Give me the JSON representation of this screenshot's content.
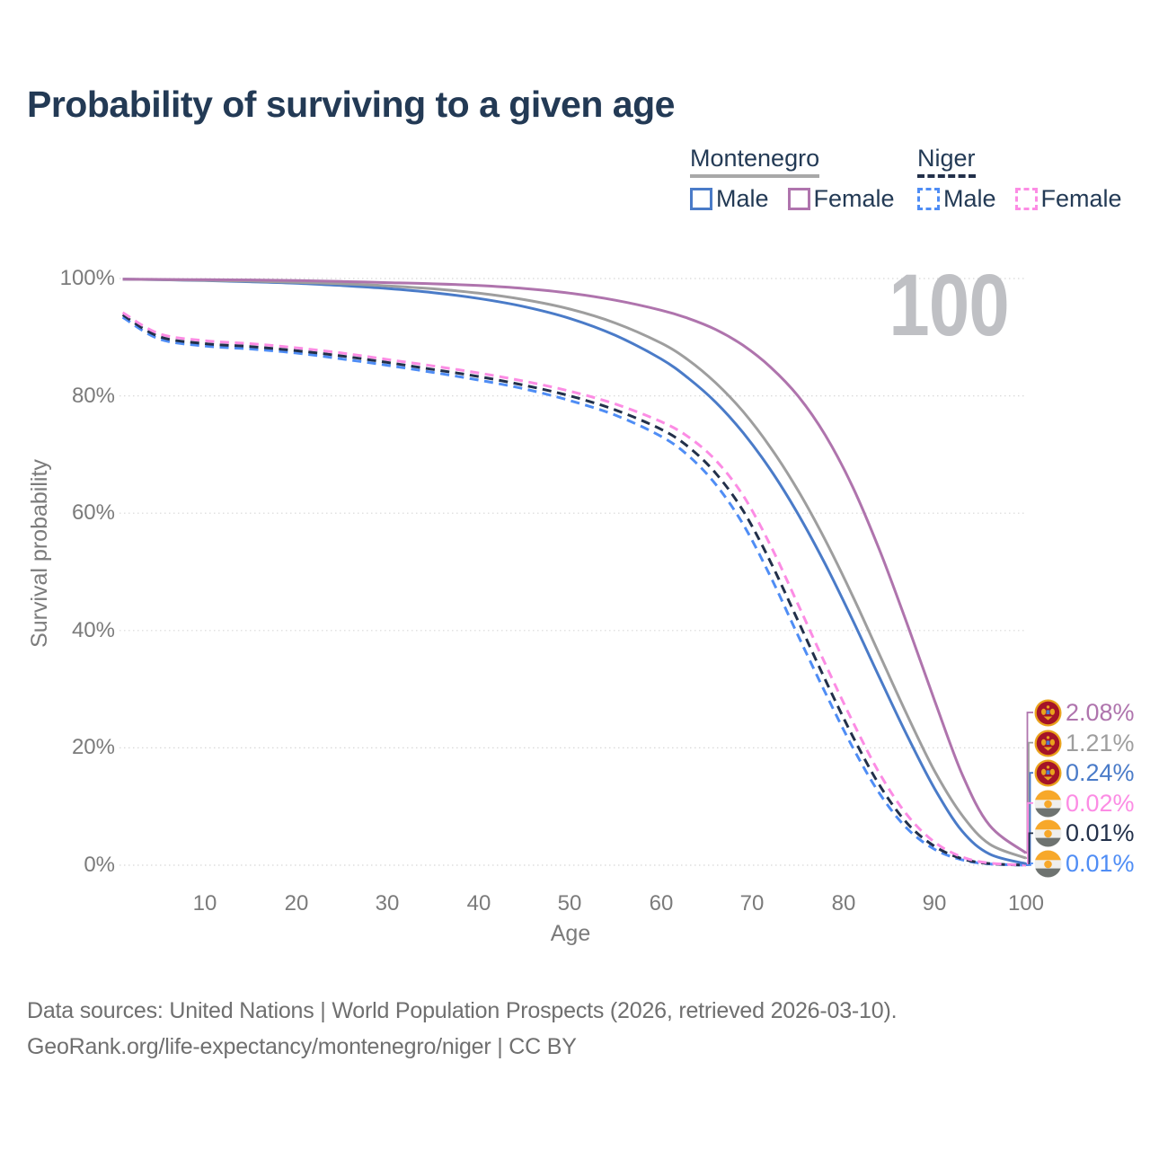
{
  "header": {
    "title": "Probability of surviving to a given age"
  },
  "legend": {
    "groups": [
      {
        "label": "Montenegro",
        "underline": "solid",
        "items": [
          {
            "label": "Male",
            "color": "#4a7bc8",
            "dashed": false
          },
          {
            "label": "Female",
            "color": "#af74ad",
            "dashed": false
          }
        ]
      },
      {
        "label": "Niger",
        "underline": "dashed",
        "items": [
          {
            "label": "Male",
            "color": "#4f8df5",
            "dashed": true
          },
          {
            "label": "Female",
            "color": "#fc8ce4",
            "dashed": true
          }
        ]
      }
    ]
  },
  "chart_data": {
    "type": "line",
    "title": "Probability of surviving to a given age",
    "xlabel": "Age",
    "ylabel": "Survival probability",
    "xlim": [
      0,
      100
    ],
    "ylim": [
      0,
      100
    ],
    "grid": true,
    "watermark": "100",
    "x_ticks": [
      10,
      20,
      30,
      40,
      50,
      60,
      70,
      80,
      90,
      100
    ],
    "y_ticks": [
      0,
      20,
      40,
      60,
      80,
      100
    ],
    "y_tick_suffix": "%",
    "ages": [
      1,
      5,
      10,
      15,
      20,
      25,
      30,
      35,
      40,
      45,
      50,
      55,
      60,
      63,
      66,
      69,
      72,
      75,
      78,
      81,
      84,
      87,
      90,
      93,
      96,
      100
    ],
    "series": [
      {
        "name": "Montenegro Female",
        "country": "Montenegro",
        "sex": "female",
        "color": "#af74ad",
        "line": "solid",
        "end_label": "2.08%",
        "values": [
          99.9,
          99.85,
          99.8,
          99.75,
          99.65,
          99.5,
          99.3,
          99.1,
          98.8,
          98.3,
          97.5,
          96.3,
          94.6,
          93.2,
          91.3,
          88.6,
          84.9,
          80.0,
          73.3,
          64.5,
          53.5,
          41.0,
          28.0,
          15.5,
          6.8,
          2.08
        ]
      },
      {
        "name": "Montenegro",
        "country": "Montenegro",
        "sex": "total",
        "color": "#9e9e9e",
        "line": "solid",
        "end_label": "1.21%",
        "values": [
          99.9,
          99.8,
          99.7,
          99.55,
          99.35,
          99.1,
          98.75,
          98.25,
          97.5,
          96.4,
          94.8,
          92.4,
          89.0,
          86.1,
          82.2,
          77.3,
          71.2,
          63.9,
          55.4,
          45.9,
          35.7,
          25.5,
          16.0,
          8.5,
          3.6,
          1.21
        ]
      },
      {
        "name": "Montenegro Male",
        "country": "Montenegro",
        "sex": "male",
        "color": "#4a7bc8",
        "line": "solid",
        "end_label": "0.24%",
        "values": [
          99.9,
          99.8,
          99.65,
          99.45,
          99.2,
          98.8,
          98.3,
          97.6,
          96.6,
          95.2,
          93.2,
          90.3,
          86.3,
          83.0,
          78.9,
          73.7,
          67.4,
          59.9,
          51.3,
          41.8,
          31.8,
          22.0,
          13.0,
          5.8,
          1.9,
          0.24
        ]
      },
      {
        "name": "Niger Female",
        "country": "Niger",
        "sex": "female",
        "color": "#fc8ce4",
        "line": "dashed",
        "end_label": "0.02%",
        "values": [
          94.2,
          90.6,
          89.4,
          88.9,
          88.2,
          87.3,
          86.2,
          85.1,
          83.9,
          82.5,
          80.8,
          78.6,
          75.6,
          73.0,
          69.0,
          63.0,
          54.5,
          44.5,
          34.3,
          24.5,
          15.5,
          8.5,
          3.9,
          1.4,
          0.35,
          0.02
        ]
      },
      {
        "name": "Niger",
        "country": "Niger",
        "sex": "total",
        "color": "#22304a",
        "line": "dashed",
        "end_label": "0.01%",
        "values": [
          93.8,
          90.1,
          88.9,
          88.4,
          87.7,
          86.8,
          85.7,
          84.5,
          83.3,
          81.8,
          80.0,
          77.6,
          74.3,
          71.3,
          66.8,
          60.4,
          51.7,
          41.7,
          31.6,
          22.0,
          13.5,
          7.1,
          3.2,
          1.1,
          0.27,
          0.01
        ]
      },
      {
        "name": "Niger Male",
        "country": "Niger",
        "sex": "male",
        "color": "#4f8df5",
        "line": "dashed",
        "end_label": "0.01%",
        "values": [
          93.4,
          89.7,
          88.5,
          88.0,
          87.3,
          86.3,
          85.2,
          84.0,
          82.7,
          81.2,
          79.2,
          76.7,
          73.1,
          69.8,
          64.9,
          58.1,
          49.2,
          39.2,
          29.4,
          20.1,
          12.1,
          6.2,
          2.7,
          0.9,
          0.22,
          0.01
        ]
      }
    ],
    "colors": {
      "grid": "#d8d8d8",
      "axis_text": "#7b7b7b",
      "watermark": "#bfc0c4",
      "montenegro_flag_red": "#a41328",
      "flag_gold": "#e9a21c",
      "niger_orange": "#f7a82a",
      "niger_white": "#efefed",
      "niger_gray": "#6e7370"
    }
  },
  "footer": {
    "line1": "Data sources: United Nations | World Population Prospects (2026, retrieved 2026-03-10).",
    "line2": "GeoRank.org/life-expectancy/montenegro/niger | CC BY"
  }
}
